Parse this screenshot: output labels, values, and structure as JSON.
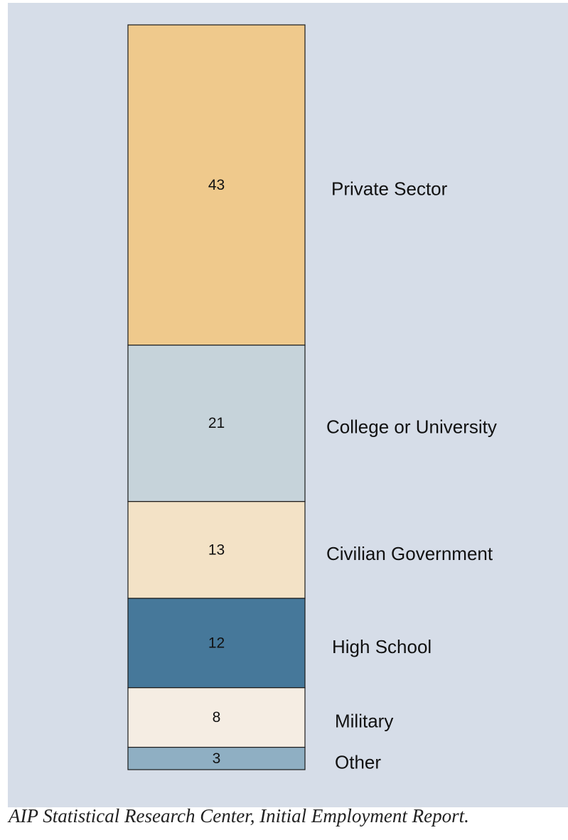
{
  "chart_data": {
    "type": "bar",
    "stacked": true,
    "orientation": "vertical",
    "unit": "percent",
    "grid": false,
    "legend": "none",
    "categories": [
      "Private Sector",
      "College or University",
      "Civilian Government",
      "High School",
      "Military",
      "Other"
    ],
    "values": [
      43,
      21,
      13,
      12,
      8,
      3
    ],
    "colors": [
      "#efc98c",
      "#c6d3da",
      "#f3e2c6",
      "#46789a",
      "#f5ede3",
      "#8fafc3"
    ]
  },
  "source": "AIP Statistical Research Center, Initial Employment Report."
}
